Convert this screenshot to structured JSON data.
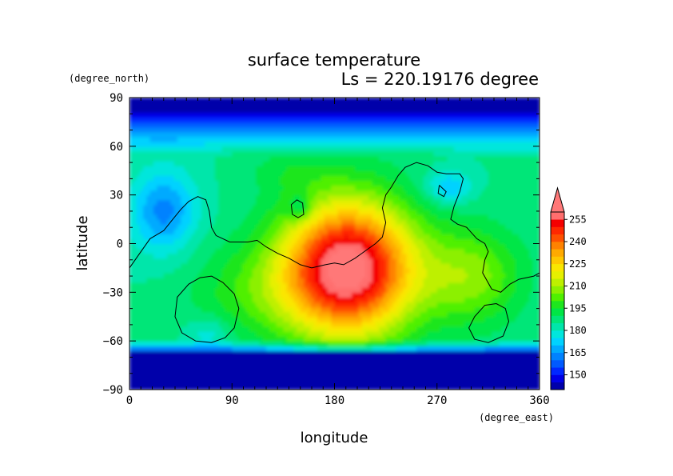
{
  "chart_data": {
    "type": "heatmap",
    "title": "surface temperature",
    "subtitle": "Ls = 220.19176 degree",
    "xlabel": "longitude",
    "ylabel": "latitude",
    "x_unit": "(degree_east)",
    "y_unit": "(degree_north)",
    "xlim": [
      0,
      360
    ],
    "ylim": [
      -90,
      90
    ],
    "x_ticks": [
      0,
      90,
      180,
      270,
      360
    ],
    "y_ticks": [
      -90,
      -60,
      -30,
      0,
      30,
      60,
      90
    ],
    "x_tick_labels": [
      "0",
      "90",
      "180",
      "270",
      "360"
    ],
    "y_tick_labels": [
      "−90",
      "−60",
      "−30",
      "0",
      "30",
      "60",
      "90"
    ],
    "colorbar": {
      "ticks": [
        150,
        165,
        180,
        195,
        210,
        225,
        240,
        255
      ],
      "tick_labels": [
        "150",
        "165",
        "180",
        "195",
        "210",
        "225",
        "240",
        "255"
      ],
      "levels": [
        140,
        145,
        150,
        155,
        160,
        165,
        170,
        175,
        180,
        185,
        190,
        195,
        200,
        205,
        210,
        215,
        220,
        225,
        230,
        235,
        240,
        245,
        250,
        255,
        260
      ],
      "colors": [
        "#0000aa",
        "#0000e6",
        "#0028ff",
        "#005aff",
        "#0082ff",
        "#00aaff",
        "#00d2ff",
        "#00e6dc",
        "#00e6aa",
        "#00e678",
        "#00e646",
        "#1ee61e",
        "#50f000",
        "#8cf000",
        "#bef000",
        "#e6f000",
        "#fae600",
        "#ffc800",
        "#ffaa00",
        "#ff8200",
        "#ff5000",
        "#ff2800",
        "#f50000",
        "#ff6e6e"
      ],
      "extend": "max",
      "over_color": "#ff7878"
    },
    "grid": false,
    "coastline": true
  }
}
